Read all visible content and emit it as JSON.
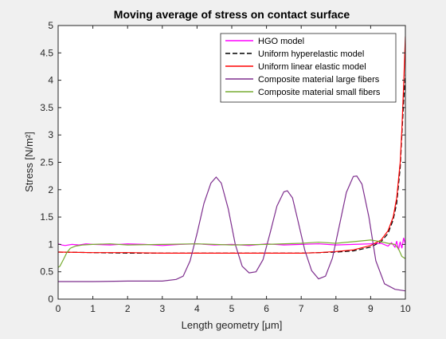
{
  "chart_data": {
    "type": "line",
    "title": "Moving average of stress on contact surface",
    "xlabel": "Length geometry [μm]",
    "ylabel": "Stress [N/m²]",
    "xlim": [
      0,
      10
    ],
    "ylim": [
      0,
      5
    ],
    "xticks": [
      "0",
      "1",
      "2",
      "3",
      "4",
      "5",
      "6",
      "7",
      "8",
      "9",
      "10"
    ],
    "yticks": [
      "0",
      "0.5",
      "1",
      "1.5",
      "2",
      "2.5",
      "3",
      "3.5",
      "4",
      "4.5",
      "5"
    ],
    "grid": false,
    "legend_position": "top-right",
    "series": [
      {
        "name": "HGO model",
        "color": "#ff00ff",
        "dash": "solid",
        "x": [
          0,
          0.1,
          0.2,
          0.4,
          0.6,
          0.8,
          1.0,
          1.5,
          2.0,
          2.5,
          3.0,
          3.5,
          4.0,
          4.5,
          5.0,
          5.5,
          6.0,
          6.5,
          7.0,
          7.5,
          8.0,
          8.5,
          9.0,
          9.3,
          9.5,
          9.6,
          9.7,
          9.75,
          9.8,
          9.85,
          9.9,
          9.95,
          10.0
        ],
        "y": [
          1.01,
          0.99,
          0.98,
          1.0,
          0.99,
          1.01,
          1.0,
          0.99,
          1.01,
          1.0,
          0.98,
          1.0,
          1.01,
          0.99,
          1.0,
          0.98,
          1.01,
          0.99,
          1.0,
          1.01,
          0.99,
          1.0,
          1.01,
          1.02,
          0.97,
          1.03,
          0.95,
          1.06,
          0.9,
          1.05,
          0.93,
          1.12,
          1.0
        ]
      },
      {
        "name": "Uniform hyperelastic model",
        "color": "#000000",
        "dash": "dashed",
        "x": [
          0,
          1,
          2,
          3,
          4,
          5,
          6,
          7,
          8,
          8.5,
          9.0,
          9.3,
          9.5,
          9.65,
          9.75,
          9.85,
          9.9,
          9.95,
          10.0
        ],
        "y": [
          0.86,
          0.85,
          0.84,
          0.84,
          0.84,
          0.84,
          0.84,
          0.84,
          0.86,
          0.88,
          0.95,
          1.05,
          1.2,
          1.45,
          1.75,
          2.4,
          3.0,
          3.6,
          4.1
        ]
      },
      {
        "name": "Uniform linear elastic model",
        "color": "#ff0000",
        "dash": "solid",
        "x": [
          0,
          1,
          2,
          3,
          4,
          5,
          6,
          7,
          7.5,
          8,
          8.5,
          9.0,
          9.3,
          9.5,
          9.65,
          9.75,
          9.85,
          9.9,
          9.95,
          10.0
        ],
        "y": [
          0.86,
          0.85,
          0.85,
          0.84,
          0.84,
          0.84,
          0.84,
          0.84,
          0.85,
          0.87,
          0.9,
          0.98,
          1.08,
          1.25,
          1.5,
          1.85,
          2.5,
          3.1,
          3.9,
          4.8
        ]
      },
      {
        "name": "Composite material large fibers",
        "color": "#7e2f8e",
        "dash": "solid",
        "x": [
          0,
          1.0,
          2.0,
          3.0,
          3.4,
          3.6,
          3.8,
          4.0,
          4.2,
          4.4,
          4.55,
          4.7,
          4.9,
          5.1,
          5.3,
          5.5,
          5.7,
          5.9,
          6.1,
          6.3,
          6.5,
          6.6,
          6.75,
          6.9,
          7.1,
          7.3,
          7.5,
          7.7,
          7.9,
          8.1,
          8.3,
          8.5,
          8.6,
          8.75,
          8.95,
          9.15,
          9.4,
          9.7,
          10.0
        ],
        "y": [
          0.32,
          0.32,
          0.33,
          0.33,
          0.36,
          0.42,
          0.7,
          1.2,
          1.75,
          2.12,
          2.23,
          2.12,
          1.65,
          1.0,
          0.6,
          0.48,
          0.5,
          0.72,
          1.2,
          1.7,
          1.96,
          1.98,
          1.85,
          1.45,
          0.9,
          0.52,
          0.37,
          0.42,
          0.75,
          1.35,
          1.95,
          2.24,
          2.25,
          2.1,
          1.5,
          0.7,
          0.28,
          0.18,
          0.15
        ]
      },
      {
        "name": "Composite material small fibers",
        "color": "#77ac30",
        "dash": "solid",
        "x": [
          0,
          0.05,
          0.15,
          0.25,
          0.35,
          0.5,
          0.7,
          1.0,
          1.5,
          2.0,
          3.0,
          4.0,
          5.0,
          6.0,
          7.0,
          7.5,
          8.0,
          8.5,
          9.0,
          9.2,
          9.5,
          9.7,
          9.8,
          9.85,
          9.9,
          9.95,
          10.0
        ],
        "y": [
          0.58,
          0.6,
          0.72,
          0.85,
          0.93,
          0.97,
          0.99,
          1.0,
          1.01,
          0.99,
          1.0,
          1.01,
          0.99,
          1.0,
          1.02,
          1.04,
          1.02,
          1.05,
          1.08,
          1.06,
          1.02,
          1.0,
          0.92,
          0.85,
          0.78,
          0.76,
          0.74
        ]
      }
    ]
  }
}
